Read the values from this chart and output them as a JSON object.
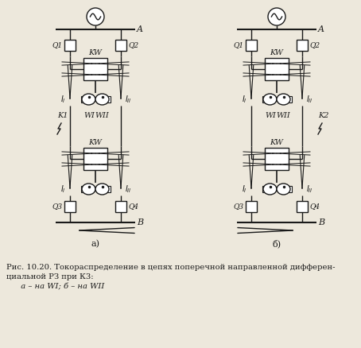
{
  "caption_line1": "Рис. 10.20. Токораспределение в цепях поперечной направленной дифферен-",
  "caption_line2": "циальной РЗ при К3:",
  "caption_line3": "  а – на WI; б – на WII",
  "bg_color": "#ede8dc",
  "line_color": "#1a1a1a",
  "label_a": "а)",
  "label_b": "б)",
  "label_A": "A",
  "label_B": "B",
  "label_KW": "KW",
  "label_K1": "K1",
  "label_K2": "K2",
  "label_Q1": "Q1",
  "label_Q2": "Q2",
  "label_Q3": "Q3",
  "label_Q4": "Q4",
  "label_WI": "WI",
  "label_WII": "WII"
}
